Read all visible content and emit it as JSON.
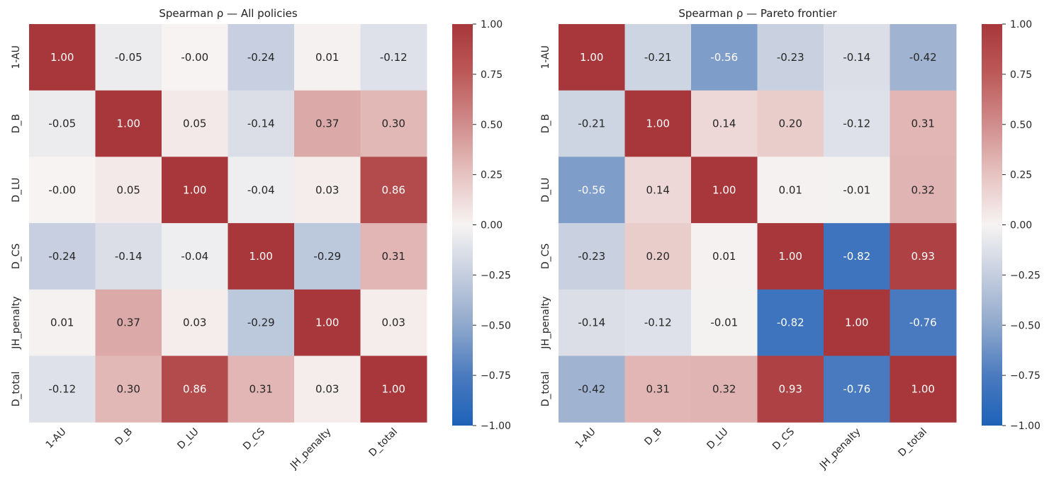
{
  "chart_data": [
    {
      "type": "heatmap",
      "title": "Spearman ρ — All policies",
      "xlabel": "",
      "ylabel": "",
      "row_labels": [
        "1-AU",
        "D_B",
        "D_LU",
        "D_CS",
        "JH_penalty",
        "D_total"
      ],
      "col_labels": [
        "1-AU",
        "D_B",
        "D_LU",
        "D_CS",
        "JH_penalty",
        "D_total"
      ],
      "values": [
        [
          1.0,
          -0.05,
          -0.0,
          -0.24,
          0.01,
          -0.12
        ],
        [
          -0.05,
          1.0,
          0.05,
          -0.14,
          0.37,
          0.3
        ],
        [
          -0.0,
          0.05,
          1.0,
          -0.04,
          0.03,
          0.86
        ],
        [
          -0.24,
          -0.14,
          -0.04,
          1.0,
          -0.29,
          0.31
        ],
        [
          0.01,
          0.37,
          0.03,
          -0.29,
          1.0,
          0.03
        ],
        [
          -0.12,
          0.3,
          0.86,
          0.31,
          0.03,
          1.0
        ]
      ],
      "cell_text": [
        [
          "1.00",
          "-0.05",
          "-0.00",
          "-0.24",
          "0.01",
          "-0.12"
        ],
        [
          "-0.05",
          "1.00",
          "0.05",
          "-0.14",
          "0.37",
          "0.30"
        ],
        [
          "-0.00",
          "0.05",
          "1.00",
          "-0.04",
          "0.03",
          "0.86"
        ],
        [
          "-0.24",
          "-0.14",
          "-0.04",
          "1.00",
          "-0.29",
          "0.31"
        ],
        [
          "0.01",
          "0.37",
          "0.03",
          "-0.29",
          "1.00",
          "0.03"
        ],
        [
          "-0.12",
          "0.30",
          "0.86",
          "0.31",
          "0.03",
          "1.00"
        ]
      ],
      "colorbar": {
        "vmin": -1.0,
        "vmax": 1.0,
        "ticks": [
          1.0,
          0.75,
          0.5,
          0.25,
          0.0,
          -0.25,
          -0.5,
          -0.75,
          -1.0
        ],
        "tick_labels": [
          "1.00",
          "0.75",
          "0.50",
          "0.25",
          "0.00",
          "−0.25",
          "−0.50",
          "−0.75",
          "−1.00"
        ]
      }
    },
    {
      "type": "heatmap",
      "title": "Spearman ρ — Pareto frontier",
      "xlabel": "",
      "ylabel": "",
      "row_labels": [
        "1-AU",
        "D_B",
        "D_LU",
        "D_CS",
        "JH_penalty",
        "D_total"
      ],
      "col_labels": [
        "1-AU",
        "D_B",
        "D_LU",
        "D_CS",
        "JH_penalty",
        "D_total"
      ],
      "values": [
        [
          1.0,
          -0.21,
          -0.56,
          -0.23,
          -0.14,
          -0.42
        ],
        [
          -0.21,
          1.0,
          0.14,
          0.2,
          -0.12,
          0.31
        ],
        [
          -0.56,
          0.14,
          1.0,
          0.01,
          -0.01,
          0.32
        ],
        [
          -0.23,
          0.2,
          0.01,
          1.0,
          -0.82,
          0.93
        ],
        [
          -0.14,
          -0.12,
          -0.01,
          -0.82,
          1.0,
          -0.76
        ],
        [
          -0.42,
          0.31,
          0.32,
          0.93,
          -0.76,
          1.0
        ]
      ],
      "cell_text": [
        [
          "1.00",
          "-0.21",
          "-0.56",
          "-0.23",
          "-0.14",
          "-0.42"
        ],
        [
          "-0.21",
          "1.00",
          "0.14",
          "0.20",
          "-0.12",
          "0.31"
        ],
        [
          "-0.56",
          "0.14",
          "1.00",
          "0.01",
          "-0.01",
          "0.32"
        ],
        [
          "-0.23",
          "0.20",
          "0.01",
          "1.00",
          "-0.82",
          "0.93"
        ],
        [
          "-0.14",
          "-0.12",
          "-0.01",
          "-0.82",
          "1.00",
          "-0.76"
        ],
        [
          "-0.42",
          "0.31",
          "0.32",
          "0.93",
          "-0.76",
          "1.00"
        ]
      ],
      "colorbar": {
        "vmin": -1.0,
        "vmax": 1.0,
        "ticks": [
          1.0,
          0.75,
          0.5,
          0.25,
          0.0,
          -0.25,
          -0.5,
          -0.75,
          -1.0
        ],
        "tick_labels": [
          "1.00",
          "0.75",
          "0.50",
          "0.25",
          "0.00",
          "−0.25",
          "−0.50",
          "−0.75",
          "−1.00"
        ]
      }
    }
  ]
}
